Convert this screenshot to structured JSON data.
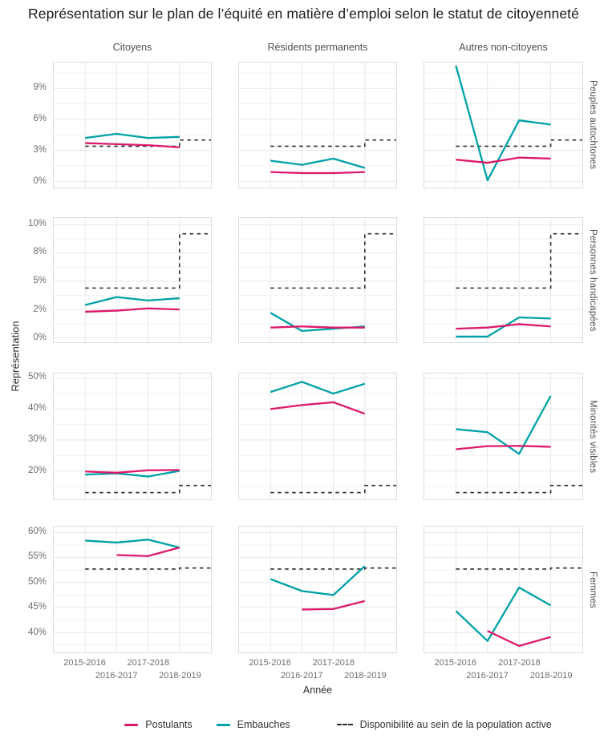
{
  "title": "Représentation sur le plan de l’équité en matière d’emploi selon le statut de citoyenneté",
  "axis": {
    "xlabel": "Année",
    "ylabel": "Représentation"
  },
  "legend": {
    "items": [
      {
        "label": "Postulants",
        "series": "postulants"
      },
      {
        "label": "Embauches",
        "series": "embauches"
      },
      {
        "label": "Disponibilité au sein de la population active",
        "series": "disponibilite"
      }
    ]
  },
  "colors": {
    "postulants": "#dd1a6a",
    "embauches": "#00a1a8",
    "disponibilite": "#2d2d2d",
    "grid_major": "#e7e7e7",
    "grid_minor": "#f3f3f3",
    "panel_border": "#dcdcdc",
    "tick_text": "#6e6e6e",
    "strip_text": "#4f4f4f"
  },
  "chart_data": {
    "type": "line",
    "title": "Représentation sur le plan de l’équité en matière d’emploi selon le statut de citoyenneté",
    "xlabel": "Année",
    "ylabel": "Représentation",
    "x_categories": [
      "2015-2016",
      "2016-2017",
      "2017-2018",
      "2018-2019"
    ],
    "column_facets": [
      "Citoyens",
      "Résidents permanents",
      "Autres non-citoyens"
    ],
    "series_names": [
      "Postulants",
      "Embauches",
      "Disponibilité au sein de la population active"
    ],
    "availability_note": "step line: first value applies 2015-2016 to 2017-2018, second value from 2018-2019",
    "row_facets": [
      {
        "label": "Peuples autochtones",
        "ylim": [
          -0.6,
          11.5
        ],
        "yticks": [
          {
            "value": 9,
            "label": "9%"
          },
          {
            "value": 6,
            "label": "6%"
          },
          {
            "value": 3,
            "label": "3%"
          },
          {
            "value": 0,
            "label": "0%"
          }
        ],
        "minor": [
          10.5,
          7.5,
          4.5,
          1.5
        ],
        "panels": [
          {
            "postulants": [
              3.7,
              3.6,
              3.5,
              3.3
            ],
            "embauches": [
              4.2,
              4.6,
              4.2,
              4.3
            ],
            "disponibilite": [
              3.4,
              4.0
            ]
          },
          {
            "postulants": [
              0.9,
              0.8,
              0.8,
              0.9
            ],
            "embauches": [
              2.0,
              1.6,
              2.2,
              1.3
            ],
            "disponibilite": [
              3.4,
              4.0
            ]
          },
          {
            "postulants": [
              2.1,
              1.8,
              2.3,
              2.2
            ],
            "embauches": [
              11.2,
              0.1,
              5.9,
              5.5
            ],
            "disponibilite": [
              3.4,
              4.0
            ]
          }
        ]
      },
      {
        "label": "Personnes handicapées",
        "ylim": [
          -0.4,
          10.6
        ],
        "yticks": [
          {
            "value": 10,
            "label": "10%"
          },
          {
            "value": 7.5,
            "label": "8%"
          },
          {
            "value": 5,
            "label": "5%"
          },
          {
            "value": 2.5,
            "label": "2%"
          },
          {
            "value": 0,
            "label": "0%"
          }
        ],
        "minor": [
          8.75,
          6.25,
          3.75,
          1.25
        ],
        "panels": [
          {
            "postulants": [
              2.3,
              2.4,
              2.6,
              2.5
            ],
            "embauches": [
              2.9,
              3.6,
              3.3,
              3.5
            ],
            "disponibilite": [
              4.4,
              9.2
            ]
          },
          {
            "postulants": [
              0.9,
              1.0,
              0.9,
              0.9
            ],
            "embauches": [
              2.2,
              0.6,
              0.8,
              1.0
            ],
            "disponibilite": [
              4.4,
              9.2
            ]
          },
          {
            "postulants": [
              0.8,
              0.9,
              1.2,
              1.0
            ],
            "embauches": [
              0.1,
              0.1,
              1.8,
              1.7
            ],
            "disponibilite": [
              4.4,
              9.2
            ]
          }
        ]
      },
      {
        "label": "Minorités visibles",
        "ylim": [
          10.8,
          51.5
        ],
        "yticks": [
          {
            "value": 50,
            "label": "50%"
          },
          {
            "value": 40,
            "label": "40%"
          },
          {
            "value": 30,
            "label": "30%"
          },
          {
            "value": 20,
            "label": "20%"
          }
        ],
        "minor": [
          45,
          35,
          25,
          15
        ],
        "panels": [
          {
            "postulants": [
              19.8,
              19.4,
              20.2,
              20.3
            ],
            "embauches": [
              18.8,
              19.2,
              18.2,
              20.0
            ],
            "disponibilite": [
              13.0,
              15.3
            ]
          },
          {
            "postulants": [
              40.0,
              41.3,
              42.2,
              38.5
            ],
            "embauches": [
              45.5,
              48.8,
              45.0,
              48.2
            ],
            "disponibilite": [
              13.0,
              15.3
            ]
          },
          {
            "postulants": [
              27.0,
              28.0,
              28.1,
              27.8
            ],
            "embauches": [
              33.5,
              32.5,
              25.5,
              44.3
            ],
            "disponibilite": [
              13.0,
              15.3
            ]
          }
        ]
      },
      {
        "label": "Femmes",
        "ylim": [
          36.0,
          61.2
        ],
        "yticks": [
          {
            "value": 60,
            "label": "60%"
          },
          {
            "value": 55,
            "label": "55%"
          },
          {
            "value": 50,
            "label": "50%"
          },
          {
            "value": 45,
            "label": "45%"
          },
          {
            "value": 40,
            "label": "40%"
          }
        ],
        "minor": [
          57.5,
          52.5,
          47.5,
          42.5,
          37.5
        ],
        "panels": [
          {
            "postulants": [
              null,
              55.5,
              55.3,
              57.0
            ],
            "embauches": [
              58.4,
              58.0,
              58.6,
              57.0
            ],
            "disponibilite": [
              52.7,
              52.9
            ]
          },
          {
            "postulants": [
              null,
              44.6,
              44.7,
              46.3
            ],
            "embauches": [
              50.7,
              48.3,
              47.5,
              53.3
            ],
            "disponibilite": [
              52.7,
              52.9
            ]
          },
          {
            "postulants": [
              null,
              40.3,
              37.3,
              39.1
            ],
            "embauches": [
              44.3,
              38.3,
              49.0,
              45.4
            ],
            "disponibilite": [
              52.7,
              52.9
            ]
          }
        ]
      }
    ]
  }
}
